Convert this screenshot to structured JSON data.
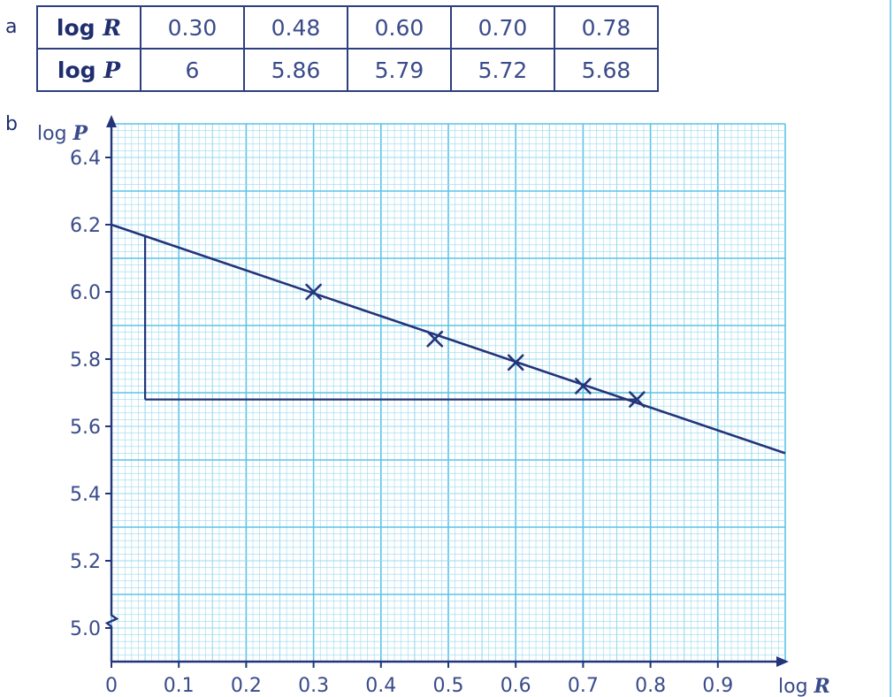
{
  "labels": {
    "part_a": "a",
    "part_b": "b"
  },
  "table": {
    "rows": [
      {
        "head_prefix": "log",
        "head_var": "R",
        "values": [
          "0.30",
          "0.48",
          "0.60",
          "0.70",
          "0.78"
        ]
      },
      {
        "head_prefix": "log",
        "head_var": "P",
        "values": [
          "6",
          "5.86",
          "5.79",
          "5.72",
          "5.68"
        ]
      }
    ]
  },
  "chart_data": {
    "type": "scatter",
    "xlabel_prefix": "log",
    "xlabel_var": "R",
    "ylabel_prefix": "log",
    "ylabel_var": "P",
    "xlim": [
      0,
      1.0
    ],
    "ylim": [
      4.9,
      6.5
    ],
    "x_ticks": [
      0,
      0.1,
      0.2,
      0.3,
      0.4,
      0.5,
      0.6,
      0.7,
      0.8,
      0.9
    ],
    "x_tick_labels": [
      "0",
      "0.1",
      "0.2",
      "0.3",
      "0.4",
      "0.5",
      "0.6",
      "0.7",
      "0.8",
      "0.9"
    ],
    "y_ticks": [
      5.0,
      5.2,
      5.4,
      5.6,
      5.8,
      6.0,
      6.2,
      6.4
    ],
    "y_tick_labels": [
      "5.0",
      "5.2",
      "5.4",
      "5.6",
      "5.8",
      "6.0",
      "6.2",
      "6.4"
    ],
    "y_axis_break": true,
    "grid": true,
    "series": [
      {
        "marker": "x",
        "x": [
          0.3,
          0.48,
          0.6,
          0.7,
          0.78
        ],
        "y": [
          6.0,
          5.86,
          5.79,
          5.72,
          5.68
        ]
      }
    ],
    "best_fit_line": {
      "x": [
        0,
        1.0
      ],
      "y": [
        6.2,
        5.52
      ]
    },
    "gradient_triangle": {
      "x": [
        0.05,
        0.78
      ],
      "y": [
        5.68,
        6.165
      ]
    },
    "colors": {
      "grid_minor": "#9ad9ef",
      "grid_major": "#5cc3e6",
      "ink": "#23347a",
      "text": "#3a4b8a"
    }
  }
}
